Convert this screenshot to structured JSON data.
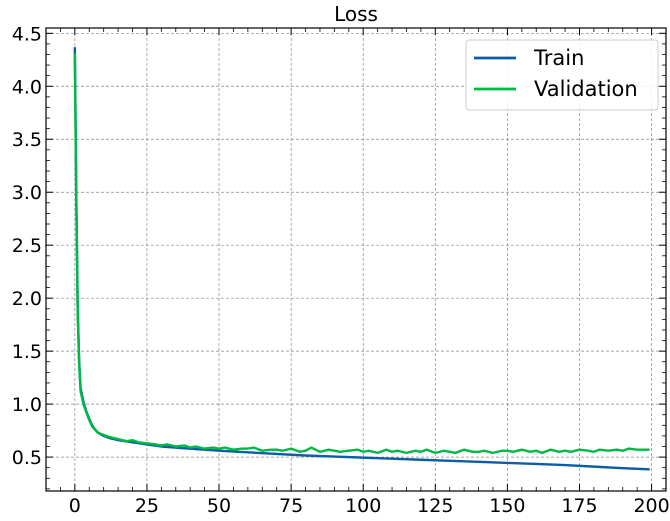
{
  "chart_data": {
    "type": "line",
    "title": "Loss",
    "xlabel": "",
    "ylabel": "",
    "xlim": [
      -10,
      205
    ],
    "ylim": [
      0.18,
      4.55
    ],
    "x_ticks": [
      0,
      25,
      50,
      75,
      100,
      125,
      150,
      175,
      200
    ],
    "y_ticks": [
      0.5,
      1.0,
      1.5,
      2.0,
      2.5,
      3.0,
      3.5,
      4.0,
      4.5
    ],
    "x_tick_labels": [
      "0",
      "25",
      "50",
      "75",
      "100",
      "125",
      "150",
      "175",
      "200"
    ],
    "y_tick_labels": [
      "0.5",
      "1.0",
      "1.5",
      "2.0",
      "2.5",
      "3.0",
      "3.5",
      "4.0",
      "4.5"
    ],
    "grid": true,
    "legend_position": "top-right",
    "series": [
      {
        "name": "Train",
        "color": "#0C5DA5",
        "x": [
          0,
          0.5,
          1,
          1.5,
          2,
          3,
          4,
          5,
          6,
          7,
          8,
          10,
          12,
          15,
          20,
          25,
          30,
          40,
          50,
          60,
          70,
          80,
          90,
          100,
          110,
          120,
          130,
          140,
          150,
          160,
          170,
          180,
          190,
          199
        ],
        "y": [
          4.36,
          3.0,
          1.9,
          1.4,
          1.15,
          1.02,
          0.93,
          0.86,
          0.8,
          0.76,
          0.73,
          0.7,
          0.68,
          0.66,
          0.64,
          0.62,
          0.6,
          0.58,
          0.56,
          0.545,
          0.53,
          0.515,
          0.505,
          0.495,
          0.485,
          0.475,
          0.465,
          0.455,
          0.445,
          0.435,
          0.425,
          0.41,
          0.395,
          0.385
        ]
      },
      {
        "name": "Validation",
        "color": "#00B945",
        "x": [
          0,
          0.5,
          1,
          1.5,
          2,
          3,
          4,
          5,
          6,
          7,
          8,
          10,
          12,
          15,
          18,
          20,
          22,
          25,
          28,
          30,
          32,
          35,
          38,
          40,
          42,
          45,
          48,
          50,
          52,
          55,
          58,
          60,
          62,
          65,
          68,
          70,
          72,
          75,
          78,
          80,
          82,
          85,
          88,
          90,
          92,
          95,
          98,
          100,
          102,
          105,
          108,
          110,
          112,
          115,
          118,
          120,
          122,
          125,
          128,
          130,
          132,
          135,
          138,
          140,
          142,
          145,
          148,
          150,
          152,
          155,
          158,
          160,
          162,
          165,
          168,
          170,
          172,
          175,
          178,
          180,
          182,
          185,
          188,
          190,
          192,
          195,
          199
        ],
        "y": [
          4.3,
          2.9,
          1.85,
          1.38,
          1.12,
          1.0,
          0.92,
          0.85,
          0.79,
          0.76,
          0.73,
          0.71,
          0.69,
          0.67,
          0.65,
          0.66,
          0.64,
          0.63,
          0.62,
          0.61,
          0.62,
          0.6,
          0.61,
          0.59,
          0.6,
          0.58,
          0.59,
          0.58,
          0.59,
          0.57,
          0.58,
          0.58,
          0.59,
          0.56,
          0.57,
          0.57,
          0.56,
          0.58,
          0.55,
          0.56,
          0.59,
          0.55,
          0.57,
          0.56,
          0.55,
          0.56,
          0.57,
          0.55,
          0.56,
          0.54,
          0.57,
          0.55,
          0.56,
          0.54,
          0.56,
          0.55,
          0.57,
          0.54,
          0.56,
          0.55,
          0.54,
          0.57,
          0.55,
          0.55,
          0.56,
          0.54,
          0.56,
          0.56,
          0.55,
          0.57,
          0.55,
          0.56,
          0.54,
          0.57,
          0.55,
          0.56,
          0.55,
          0.57,
          0.56,
          0.55,
          0.57,
          0.56,
          0.57,
          0.56,
          0.58,
          0.57,
          0.57
        ]
      }
    ]
  }
}
